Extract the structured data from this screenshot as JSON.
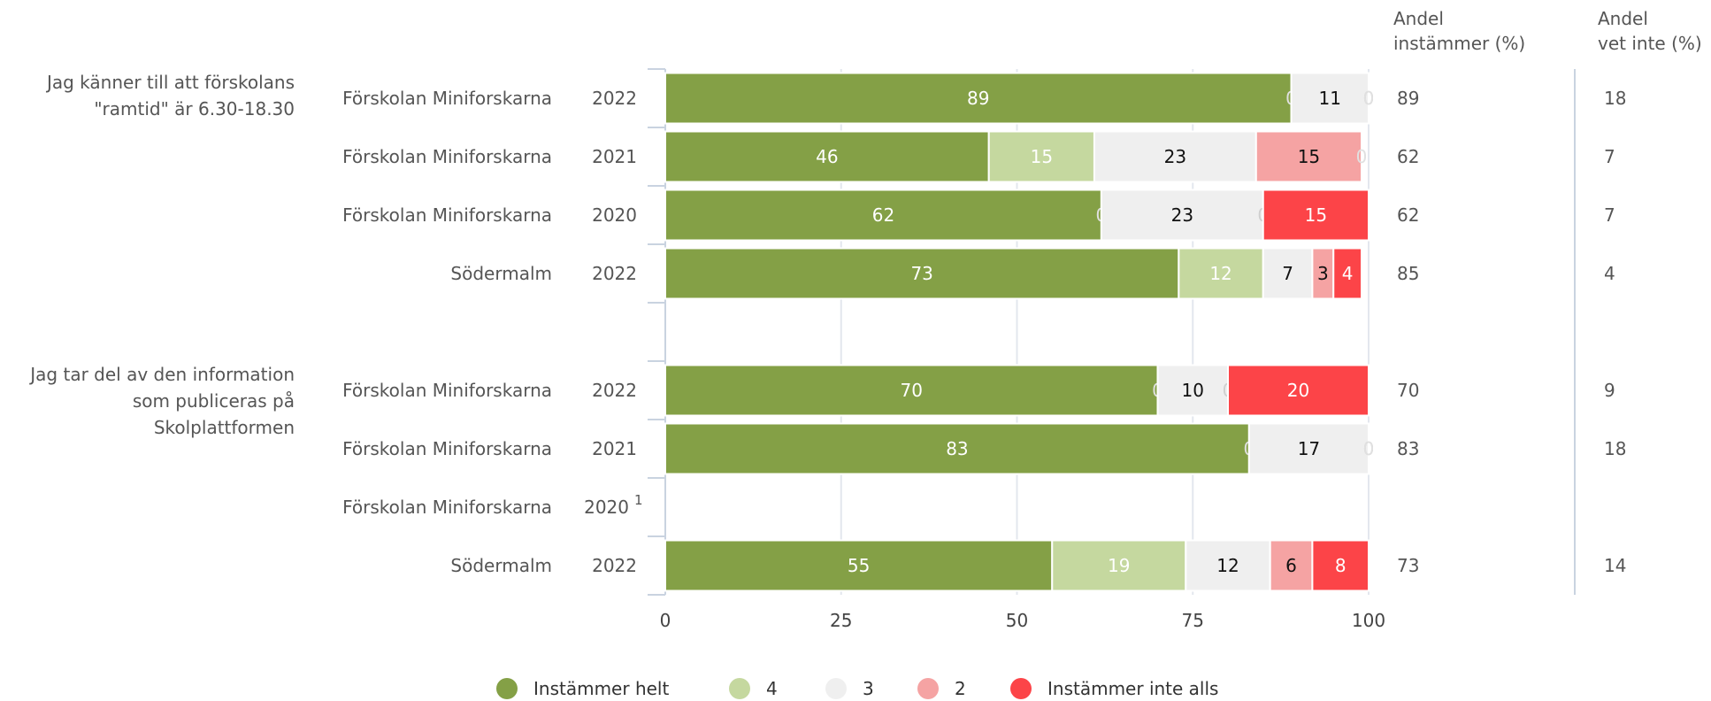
{
  "header": {
    "col1_line1": "Andel",
    "col1_line2": "instämmer (%)",
    "col2_line1": "Andel",
    "col2_line2": "vet inte (%)"
  },
  "colors": {
    "Instämmer helt": "#84a046",
    "4": "#c5d89f",
    "3": "#efefef",
    "2": "#f5a3a3",
    "Instämmer inte alls": "#fc4448"
  },
  "chart_data": {
    "type": "bar",
    "orientation": "horizontal",
    "stacked": true,
    "xlim": [
      0,
      100
    ],
    "xticks": [
      "0",
      "25",
      "50",
      "75",
      "100"
    ],
    "grid": true,
    "legend_position": "bottom",
    "series_names": [
      "Instämmer helt",
      "4",
      "3",
      "2",
      "Instämmer inte alls"
    ],
    "groups": [
      {
        "question": [
          "Jag känner till att förskolans",
          "\"ramtid\" är 6.30-18.30"
        ],
        "rows": [
          {
            "unit": "Förskolan Miniforskarna",
            "year": "2022",
            "values": [
              89,
              0,
              11,
              0,
              0
            ],
            "andel_instammer": "89",
            "andel_vet_inte": "18"
          },
          {
            "unit": "Förskolan Miniforskarna",
            "year": "2021",
            "values": [
              46,
              15,
              23,
              15,
              0
            ],
            "andel_instammer": "62",
            "andel_vet_inte": "7"
          },
          {
            "unit": "Förskolan Miniforskarna",
            "year": "2020",
            "values": [
              62,
              0,
              23,
              0,
              15
            ],
            "andel_instammer": "62",
            "andel_vet_inte": "7"
          },
          {
            "unit": "Södermalm",
            "year": "2022",
            "values": [
              73,
              12,
              7,
              3,
              4
            ],
            "andel_instammer": "85",
            "andel_vet_inte": "4"
          }
        ]
      },
      {
        "question": [
          "Jag tar del av den information",
          "som publiceras på",
          "Skolplattformen"
        ],
        "rows": [
          {
            "unit": "Förskolan Miniforskarna",
            "year": "2022",
            "values": [
              70,
              0,
              10,
              0,
              20
            ],
            "andel_instammer": "70",
            "andel_vet_inte": "9"
          },
          {
            "unit": "Förskolan Miniforskarna",
            "year": "2021",
            "values": [
              83,
              0,
              17,
              0,
              0
            ],
            "andel_instammer": "83",
            "andel_vet_inte": "18"
          },
          {
            "unit": "Förskolan Miniforskarna",
            "year": "2020",
            "footnote": "1",
            "values": null,
            "andel_instammer": "",
            "andel_vet_inte": ""
          },
          {
            "unit": "Södermalm",
            "year": "2022",
            "values": [
              55,
              19,
              12,
              6,
              8
            ],
            "andel_instammer": "73",
            "andel_vet_inte": "14"
          }
        ]
      }
    ]
  }
}
